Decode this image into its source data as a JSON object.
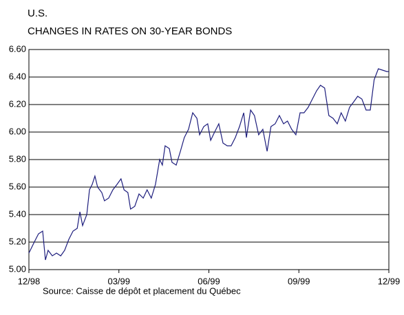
{
  "chart_data": {
    "type": "line",
    "title": [
      "U.S.",
      "CHANGES IN RATES ON 30-YEAR BONDS"
    ],
    "source": "Source: Caisse de dépôt et placement du Québec",
    "x": [
      0,
      0.18,
      0.32,
      0.46,
      0.55,
      0.64,
      0.78,
      0.92,
      1.06,
      1.19,
      1.33,
      1.47,
      1.61,
      1.7,
      1.79,
      1.93,
      2.02,
      2.11,
      2.2,
      2.29,
      2.43,
      2.52,
      2.66,
      2.8,
      2.94,
      3.07,
      3.17,
      3.3,
      3.39,
      3.53,
      3.67,
      3.81,
      3.94,
      4.08,
      4.22,
      4.36,
      4.45,
      4.54,
      4.68,
      4.77,
      4.91,
      5.05,
      5.18,
      5.32,
      5.46,
      5.6,
      5.69,
      5.83,
      5.96,
      6.06,
      6.19,
      6.33,
      6.47,
      6.61,
      6.74,
      6.88,
      7.02,
      7.16,
      7.25,
      7.39,
      7.52,
      7.66,
      7.8,
      7.94,
      8.07,
      8.21,
      8.35,
      8.49,
      8.62,
      8.76,
      8.9,
      9.04,
      9.17,
      9.31,
      9.45,
      9.59,
      9.72,
      9.86,
      10.0,
      10.14,
      10.28,
      10.41,
      10.55,
      10.69,
      10.83,
      10.96,
      11.1,
      11.24,
      11.38,
      11.51,
      11.65,
      11.79,
      11.93,
      12
    ],
    "series": [
      {
        "name": "30-year bonds",
        "color": "#1c1c7c",
        "values": [
          5.12,
          5.2,
          5.26,
          5.28,
          5.07,
          5.14,
          5.1,
          5.12,
          5.1,
          5.14,
          5.22,
          5.28,
          5.3,
          5.42,
          5.32,
          5.4,
          5.58,
          5.62,
          5.68,
          5.6,
          5.56,
          5.5,
          5.52,
          5.58,
          5.62,
          5.66,
          5.58,
          5.56,
          5.44,
          5.46,
          5.55,
          5.52,
          5.58,
          5.52,
          5.62,
          5.8,
          5.76,
          5.9,
          5.88,
          5.78,
          5.76,
          5.86,
          5.96,
          6.02,
          6.14,
          6.1,
          5.98,
          6.04,
          6.06,
          5.94,
          6.0,
          6.06,
          5.92,
          5.9,
          5.9,
          5.96,
          6.04,
          6.14,
          5.96,
          6.16,
          6.12,
          5.98,
          6.02,
          5.86,
          6.04,
          6.06,
          6.12,
          6.06,
          6.08,
          6.02,
          5.98,
          6.14,
          6.14,
          6.18,
          6.24,
          6.3,
          6.34,
          6.32,
          6.12,
          6.1,
          6.06,
          6.14,
          6.08,
          6.18,
          6.22,
          6.26,
          6.24,
          6.16,
          6.16,
          6.38,
          6.46,
          6.45,
          6.44,
          6.44
        ]
      }
    ],
    "xlim": [
      0,
      12
    ],
    "xticks": [
      {
        "value": 0,
        "label": "12/98"
      },
      {
        "value": 3,
        "label": "03/99"
      },
      {
        "value": 6,
        "label": "06/99"
      },
      {
        "value": 9,
        "label": "09/99"
      },
      {
        "value": 12,
        "label": "12/99"
      }
    ],
    "ylim": [
      5.0,
      6.6
    ],
    "yticks": [
      {
        "value": 5.0,
        "label": "5.00"
      },
      {
        "value": 5.2,
        "label": "5.20"
      },
      {
        "value": 5.4,
        "label": "5.40"
      },
      {
        "value": 5.6,
        "label": "5.60"
      },
      {
        "value": 5.8,
        "label": "5.80"
      },
      {
        "value": 6.0,
        "label": "6.00"
      },
      {
        "value": 6.2,
        "label": "6.20"
      },
      {
        "value": 6.4,
        "label": "6.40"
      },
      {
        "value": 6.6,
        "label": "6.60"
      }
    ],
    "grid": true
  }
}
